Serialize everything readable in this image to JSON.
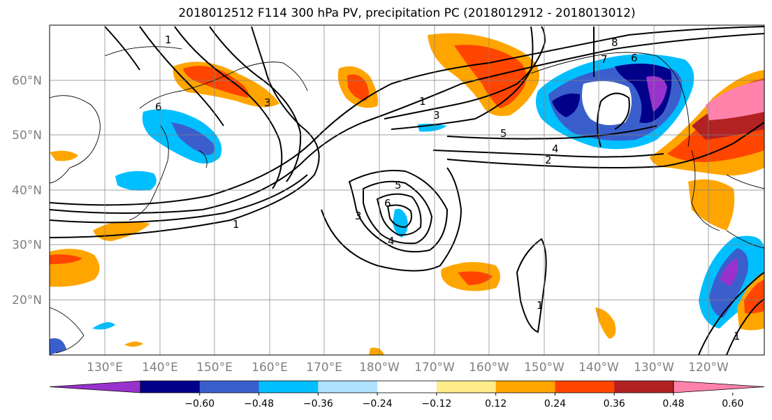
{
  "title": "2018012512 F114 300 hPa PV, precipitation PC (2018012912 - 2018013012)",
  "lat_labels": [
    "60°N",
    "50°N",
    "40°N",
    "30°N",
    "20°N"
  ],
  "lon_labels": [
    "130°E",
    "140°E",
    "150°E",
    "160°E",
    "170°E",
    "180°W",
    "170°W",
    "160°W",
    "150°W",
    "140°W",
    "130°W",
    "120°W"
  ],
  "colorbar": {
    "ticks": [
      "−0.60",
      "−0.48",
      "−0.36",
      "−0.24",
      "−0.12",
      "0.12",
      "0.24",
      "0.36",
      "0.48",
      "0.60"
    ],
    "colors": [
      "#9932cc",
      "#00008b",
      "#3a5fcd",
      "#00bfff",
      "#b0e2ff",
      "#ffffff",
      "#ffec8b",
      "#ffa500",
      "#ff4500",
      "#b22222",
      "#ff82ab"
    ]
  },
  "contour_labels": [
    "1",
    "3",
    "6",
    "7",
    "8",
    "6",
    "1",
    "3",
    "5",
    "4",
    "2",
    "5",
    "6",
    "3",
    "4",
    "1",
    "1",
    "1"
  ]
}
